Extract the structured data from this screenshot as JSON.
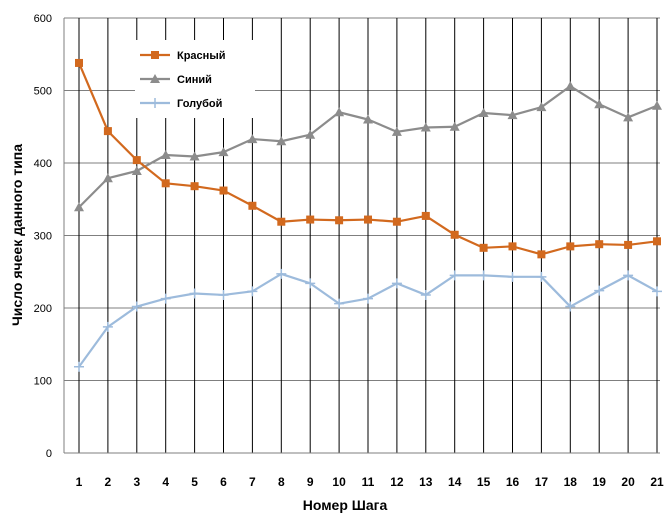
{
  "chart_data": {
    "type": "line",
    "categories": [
      "1",
      "2",
      "3",
      "4",
      "5",
      "6",
      "7",
      "8",
      "9",
      "10",
      "11",
      "12",
      "13",
      "14",
      "15",
      "16",
      "17",
      "18",
      "19",
      "20",
      "21"
    ],
    "xlabel": "Номер Шага",
    "ylabel": "Число ячеек данного типа",
    "ylim": [
      0,
      600
    ],
    "yticks": [
      "0",
      "100",
      "200",
      "300",
      "400",
      "500",
      "600"
    ],
    "grid": "horizontal and vertical",
    "legend": "top-left",
    "series": [
      {
        "name": "Красный",
        "color": "#d2691e",
        "marker": "square",
        "values": [
          538,
          444,
          404,
          372,
          368,
          362,
          341,
          319,
          322,
          321,
          322,
          319,
          327,
          301,
          283,
          285,
          274,
          285,
          288,
          287,
          292
        ]
      },
      {
        "name": "Синий",
        "color": "#8c8c8c",
        "marker": "triangle",
        "values": [
          339,
          379,
          389,
          411,
          409,
          415,
          433,
          430,
          439,
          470,
          460,
          443,
          449,
          450,
          469,
          466,
          477,
          506,
          481,
          463,
          479
        ]
      },
      {
        "name": "Голубой",
        "color": "#9dbbdc",
        "marker": "plus",
        "values": [
          119,
          174,
          202,
          213,
          220,
          218,
          223,
          247,
          234,
          206,
          213,
          234,
          218,
          245,
          245,
          243,
          243,
          202,
          224,
          245,
          223
        ]
      }
    ]
  }
}
